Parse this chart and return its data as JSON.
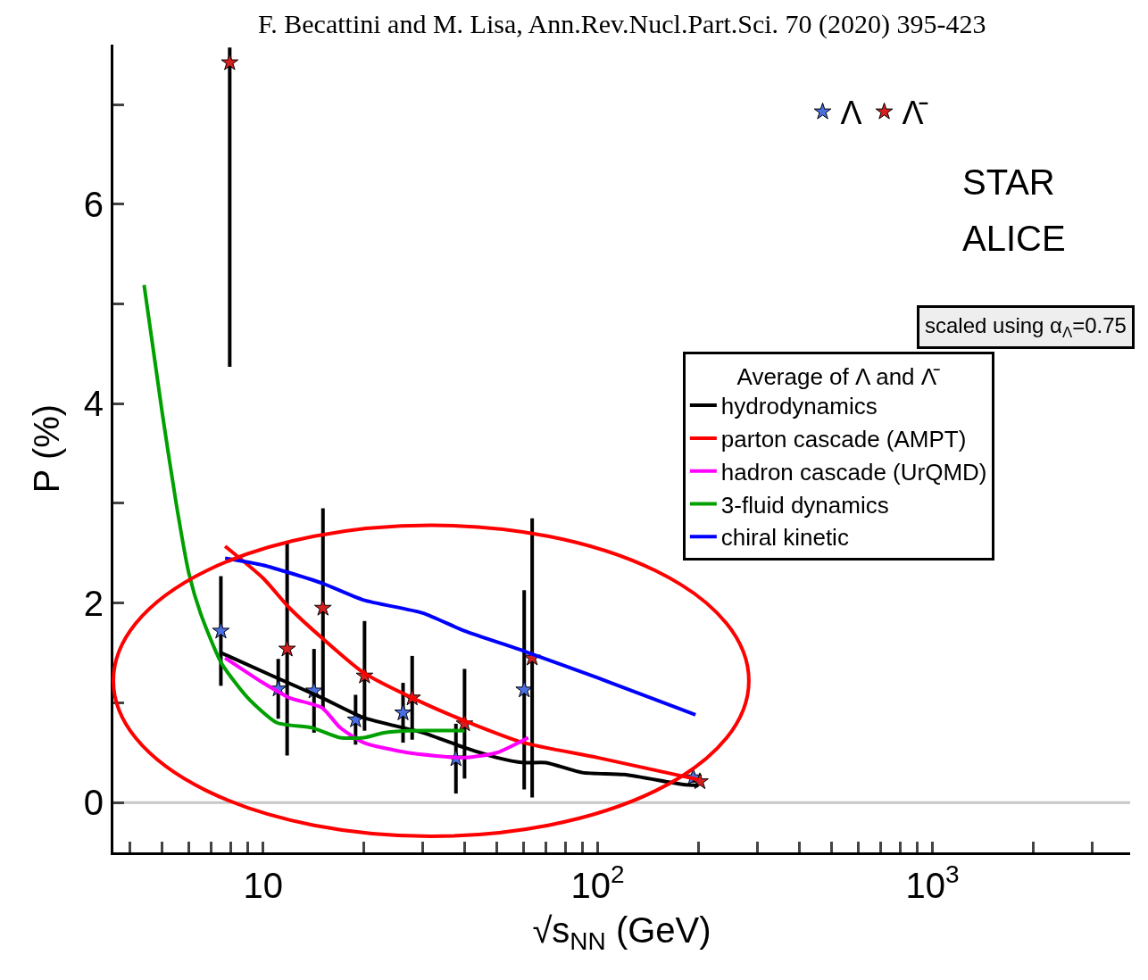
{
  "chart_data": {
    "type": "scatter",
    "xlabel": "√s$_{NN}$ (GeV)",
    "ylabel": "P (%)",
    "legend_title": "Average of Λ and Λ̄",
    "log": "x",
    "xlim": [
      3.57,
      3900
    ],
    "ylim": [
      -0.5,
      7.6
    ],
    "xticks": [
      {
        "value": 4,
        "label": null
      },
      {
        "value": 5,
        "label": null
      },
      {
        "value": 6,
        "label": null
      },
      {
        "value": 7,
        "label": null
      },
      {
        "value": 8,
        "label": null
      },
      {
        "value": 9,
        "label": null
      },
      {
        "value": 10,
        "label": "10"
      },
      {
        "value": 20,
        "label": null
      },
      {
        "value": 30,
        "label": null
      },
      {
        "value": 40,
        "label": null
      },
      {
        "value": 50,
        "label": null
      },
      {
        "value": 60,
        "label": null
      },
      {
        "value": 70,
        "label": null
      },
      {
        "value": 80,
        "label": null
      },
      {
        "value": 90,
        "label": null
      },
      {
        "value": 100,
        "label": "10$^{2}$"
      },
      {
        "value": 200,
        "label": null
      },
      {
        "value": 300,
        "label": null
      },
      {
        "value": 400,
        "label": null
      },
      {
        "value": 500,
        "label": null
      },
      {
        "value": 600,
        "label": null
      },
      {
        "value": 700,
        "label": null
      },
      {
        "value": 800,
        "label": null
      },
      {
        "value": 900,
        "label": null
      },
      {
        "value": 1000,
        "label": "10$^{3}$"
      },
      {
        "value": 2000,
        "label": null
      },
      {
        "value": 3000,
        "label": null
      }
    ],
    "yticks": [
      0,
      {
        "value": 1,
        "label": null
      },
      2,
      {
        "value": 3,
        "label": null
      },
      4,
      {
        "value": 5,
        "label": null
      },
      6,
      {
        "value": 7,
        "label": null
      }
    ],
    "grid": false,
    "legend": "right",
    "series": [
      {
        "name": "Λ",
        "marker": "star",
        "color": "#4a6fe3",
        "x": [
          7.48,
          11.1,
          14.2,
          18.9,
          26.2,
          37.7,
          60.3,
          193
        ],
        "values": [
          1.72,
          1.14,
          1.12,
          0.83,
          0.9,
          0.44,
          1.13,
          0.25
        ],
        "errors": [
          0.55,
          0.3,
          0.42,
          0.25,
          0.3,
          0.35,
          1.0,
          0.05
        ]
      },
      {
        "name": "Λ̄",
        "marker": "star",
        "color": "#d62020",
        "x": [
          7.95,
          11.8,
          15.1,
          20.1,
          27.9,
          40.0,
          63.7,
          202
        ],
        "values": [
          7.42,
          1.54,
          1.95,
          1.27,
          1.05,
          0.79,
          1.45,
          0.21
        ],
        "errors": [
          [
            4.37,
            7.57
          ],
          1.07,
          1.0,
          0.55,
          0.42,
          0.55,
          1.4,
          0.04
        ]
      },
      {
        "name": "hydrodynamics",
        "type": "line",
        "color": "#000000",
        "x": [
          7.5,
          11,
          15,
          20,
          30,
          40,
          50,
          60,
          70,
          90,
          120,
          180,
          200
        ],
        "values": [
          1.5,
          1.25,
          1.05,
          0.85,
          0.7,
          0.55,
          0.45,
          0.4,
          0.4,
          0.3,
          0.28,
          0.18,
          0.17
        ]
      },
      {
        "name": "parton cascade (AMPT)",
        "type": "line",
        "color": "#ff0000",
        "x": [
          7.7,
          10,
          12,
          15,
          20,
          30,
          40,
          60,
          100,
          200
        ],
        "values": [
          2.57,
          2.25,
          1.95,
          1.65,
          1.3,
          1.0,
          0.82,
          0.6,
          0.45,
          0.23
        ]
      },
      {
        "name": "hadron cascade (UrQMD)",
        "type": "line",
        "color": "#ff00ff",
        "x": [
          7.7,
          10,
          12,
          15,
          17,
          20,
          27,
          40,
          50,
          62
        ],
        "values": [
          1.45,
          1.2,
          1.05,
          0.95,
          0.75,
          0.6,
          0.5,
          0.45,
          0.5,
          0.65
        ]
      },
      {
        "name": "3-fluid dynamics",
        "type": "line",
        "color": "#00a000",
        "x": [
          4.41,
          5,
          5.5,
          6,
          6.5,
          7.5,
          9,
          11,
          14,
          17,
          20,
          23,
          27,
          40
        ],
        "values": [
          5.19,
          3.9,
          3.0,
          2.3,
          1.9,
          1.4,
          1.05,
          0.8,
          0.75,
          0.65,
          0.65,
          0.7,
          0.72,
          0.72
        ]
      },
      {
        "name": "chiral kinetic",
        "type": "line",
        "color": "#0000ff",
        "x": [
          7.7,
          10,
          15,
          20,
          30,
          40,
          60,
          100,
          196
        ],
        "values": [
          2.45,
          2.38,
          2.2,
          2.03,
          1.9,
          1.72,
          1.52,
          1.25,
          0.88
        ]
      }
    ],
    "ref_lines": [
      {
        "axis": "y",
        "value": 0,
        "color": "#c8c8c8"
      }
    ],
    "annotations": [
      "F. Becattini and M. Lisa, Ann.Rev.Nucl.Part.Sci. 70 (2020) 395-423",
      "STAR",
      "ALICE",
      "scaled using α$_{Λ}$=0.75"
    ]
  }
}
